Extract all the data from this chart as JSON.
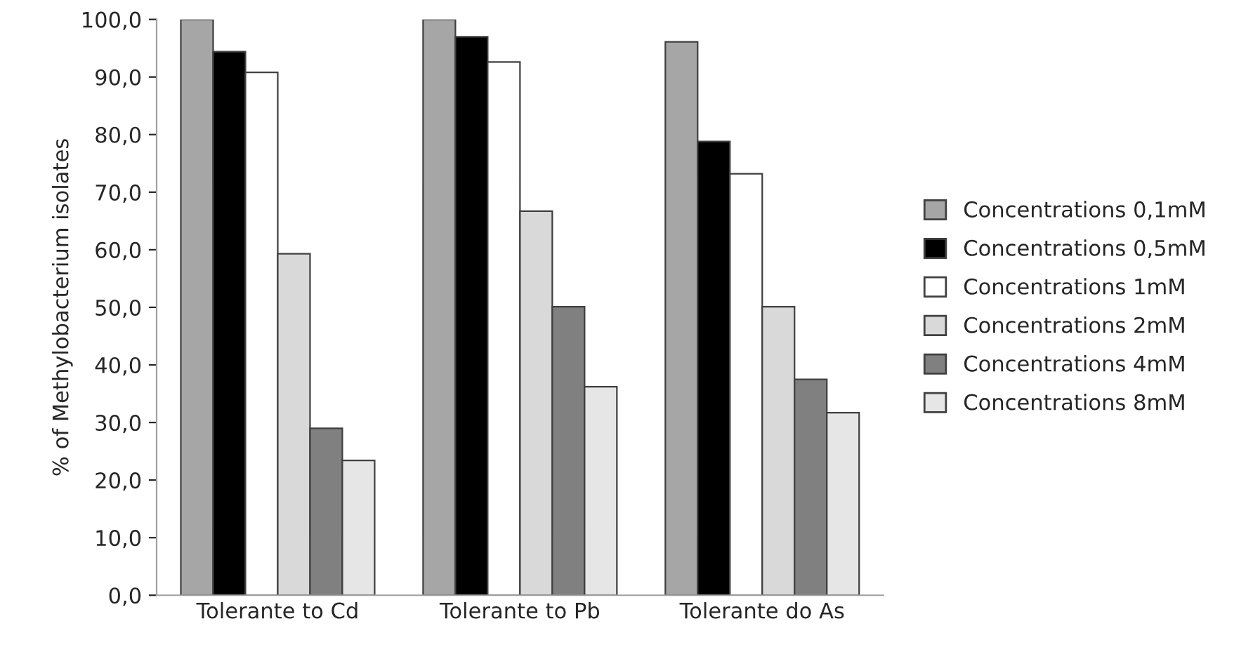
{
  "chart_data": {
    "type": "bar",
    "ylabel": "% of Methylobacterium isolates",
    "categories": [
      "Tolerante to Cd",
      "Tolerante to Pb",
      "Tolerante do As"
    ],
    "series": [
      {
        "name": "Concentrations 0,1mM",
        "color": "#a6a6a6",
        "values": [
          100,
          100,
          96.1
        ]
      },
      {
        "name": "Concentrations 0,5mM",
        "color": "#000000",
        "values": [
          94.4,
          97.0,
          78.8
        ]
      },
      {
        "name": "Concentrations 1mM",
        "color": "#ffffff",
        "values": [
          90.8,
          92.6,
          73.2
        ]
      },
      {
        "name": "Concentrations 2mM",
        "color": "#d9d9d9",
        "values": [
          59.3,
          66.7,
          50.1
        ]
      },
      {
        "name": "Concentrations 4mM",
        "color": "#808080",
        "values": [
          29.0,
          50.1,
          37.5
        ]
      },
      {
        "name": "Concentrations 8mM",
        "color": "#e6e6e6",
        "values": [
          23.4,
          36.2,
          31.7
        ]
      }
    ],
    "ylim": [
      0,
      100
    ],
    "yticks": [
      {
        "value": 0,
        "label": "0,0"
      },
      {
        "value": 10,
        "label": "10,0"
      },
      {
        "value": 20,
        "label": "20,0"
      },
      {
        "value": 30,
        "label": "30,0"
      },
      {
        "value": 40,
        "label": "40,0"
      },
      {
        "value": 50,
        "label": "50,0"
      },
      {
        "value": 60,
        "label": "60,0"
      },
      {
        "value": 70,
        "label": "70,0"
      },
      {
        "value": 80,
        "label": "80,0"
      },
      {
        "value": 90,
        "label": "90,0"
      },
      {
        "value": 100,
        "label": "100,0"
      }
    ],
    "grid": false,
    "legend": "right"
  }
}
